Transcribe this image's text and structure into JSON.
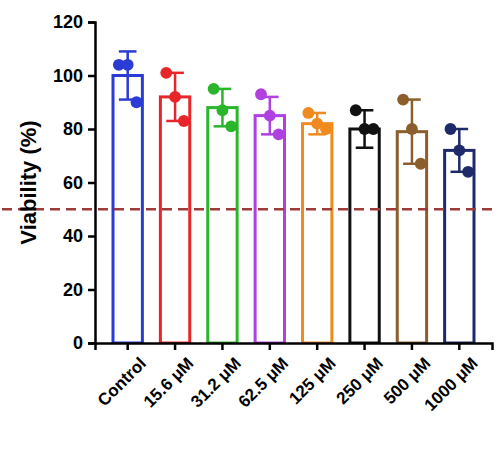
{
  "chart_data": {
    "type": "bar",
    "y_label": "Viability (%)",
    "categories": [
      "Control",
      "15.6 μM",
      "31.2 μM",
      "62.5 μM",
      "125 μM",
      "250 μM",
      "500 μM",
      "1000 μM"
    ],
    "values": [
      100,
      92,
      88,
      85,
      82,
      80,
      79,
      72
    ],
    "errors": [
      9,
      9,
      7,
      7,
      4,
      7,
      12,
      8
    ],
    "points": [
      [
        104,
        104,
        90
      ],
      [
        101,
        92,
        83
      ],
      [
        95,
        87,
        81
      ],
      [
        93,
        85,
        78
      ],
      [
        86,
        82,
        80
      ],
      [
        87,
        80,
        80
      ],
      [
        91,
        80,
        67
      ],
      [
        80,
        72,
        64
      ]
    ],
    "colors": [
      "#2a3bd6",
      "#e8262a",
      "#2bb52b",
      "#b040e0",
      "#f08a1f",
      "#111111",
      "#8b5e2b",
      "#1f2a6b"
    ],
    "ylim": [
      0,
      120
    ],
    "yticks": [
      0,
      20,
      40,
      60,
      80,
      100,
      120
    ],
    "reference_line": 50,
    "grid": false,
    "marker": "circle"
  }
}
